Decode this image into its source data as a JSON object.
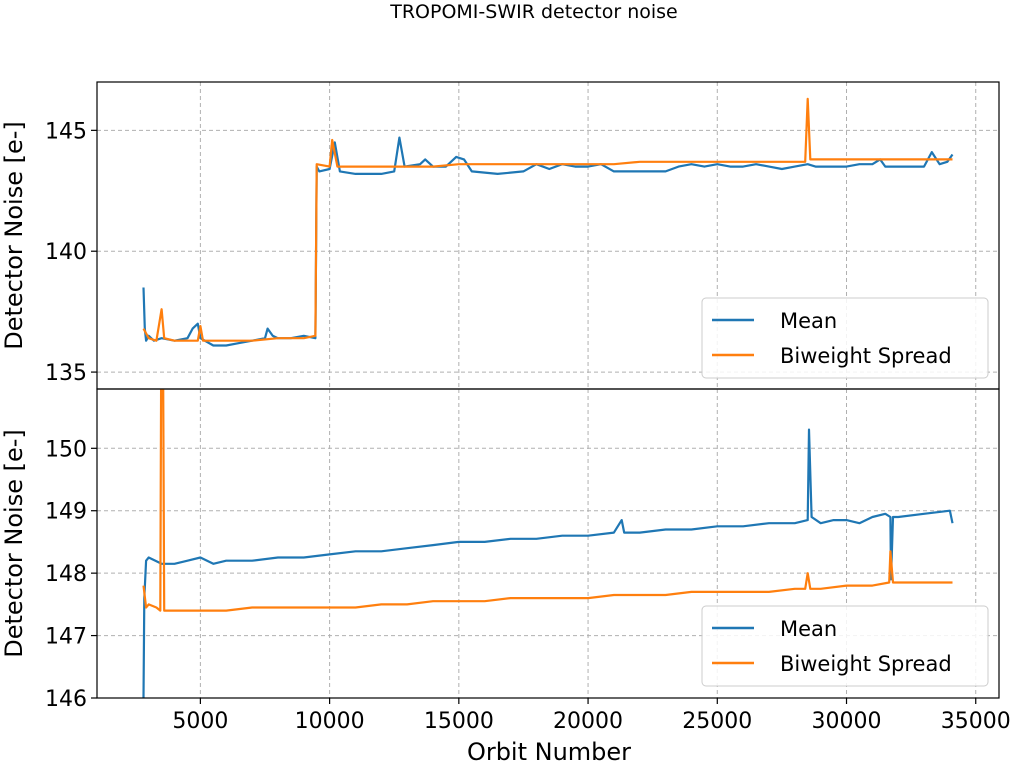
{
  "figure": {
    "title": "TROPOMI-SWIR detector noise",
    "xlabel": "Orbit Number",
    "x_ticks": [
      5000,
      10000,
      15000,
      20000,
      25000,
      30000,
      35000
    ]
  },
  "chart_data": [
    {
      "type": "line",
      "panel": "top",
      "title": "TROPOMI-SWIR detector noise",
      "xlabel": "",
      "ylabel": "Detector Noise [e-]",
      "xlim": [
        1000,
        35900
      ],
      "ylim": [
        134.3,
        147.0
      ],
      "x_ticks": [
        5000,
        10000,
        15000,
        20000,
        25000,
        30000,
        35000
      ],
      "y_ticks": [
        135,
        140,
        145
      ],
      "grid": true,
      "legend_position": "lower-right",
      "series": [
        {
          "name": "Mean",
          "color": "#1f77b4",
          "points": [
            [
              2800,
              138.5
            ],
            [
              2850,
              136.8
            ],
            [
              2900,
              136.3
            ],
            [
              3000,
              136.5
            ],
            [
              3200,
              136.3
            ],
            [
              3500,
              136.4
            ],
            [
              4000,
              136.3
            ],
            [
              4500,
              136.4
            ],
            [
              4700,
              136.8
            ],
            [
              4900,
              137.0
            ],
            [
              5000,
              136.4
            ],
            [
              5500,
              136.1
            ],
            [
              6000,
              136.1
            ],
            [
              6500,
              136.2
            ],
            [
              7000,
              136.3
            ],
            [
              7500,
              136.4
            ],
            [
              7600,
              136.8
            ],
            [
              7800,
              136.5
            ],
            [
              8000,
              136.4
            ],
            [
              8500,
              136.4
            ],
            [
              9000,
              136.5
            ],
            [
              9450,
              136.4
            ],
            [
              9500,
              143.5
            ],
            [
              9600,
              143.3
            ],
            [
              10000,
              143.4
            ],
            [
              10200,
              144.5
            ],
            [
              10400,
              143.3
            ],
            [
              11000,
              143.2
            ],
            [
              12000,
              143.2
            ],
            [
              12500,
              143.3
            ],
            [
              12700,
              144.7
            ],
            [
              12900,
              143.5
            ],
            [
              13500,
              143.6
            ],
            [
              13700,
              143.8
            ],
            [
              14000,
              143.5
            ],
            [
              14500,
              143.5
            ],
            [
              14900,
              143.9
            ],
            [
              15200,
              143.8
            ],
            [
              15500,
              143.3
            ],
            [
              16500,
              143.2
            ],
            [
              17500,
              143.3
            ],
            [
              18000,
              143.6
            ],
            [
              18500,
              143.4
            ],
            [
              19000,
              143.6
            ],
            [
              19500,
              143.5
            ],
            [
              20000,
              143.5
            ],
            [
              20500,
              143.6
            ],
            [
              21000,
              143.3
            ],
            [
              22000,
              143.3
            ],
            [
              23000,
              143.3
            ],
            [
              23500,
              143.5
            ],
            [
              24000,
              143.6
            ],
            [
              24500,
              143.5
            ],
            [
              25000,
              143.6
            ],
            [
              25500,
              143.5
            ],
            [
              26000,
              143.5
            ],
            [
              26500,
              143.6
            ],
            [
              27000,
              143.5
            ],
            [
              27500,
              143.4
            ],
            [
              28000,
              143.5
            ],
            [
              28500,
              143.6
            ],
            [
              28800,
              143.5
            ],
            [
              29500,
              143.5
            ],
            [
              30000,
              143.5
            ],
            [
              30500,
              143.6
            ],
            [
              31000,
              143.6
            ],
            [
              31300,
              143.8
            ],
            [
              31500,
              143.5
            ],
            [
              32000,
              143.5
            ],
            [
              32500,
              143.5
            ],
            [
              33000,
              143.5
            ],
            [
              33300,
              144.1
            ],
            [
              33600,
              143.6
            ],
            [
              33900,
              143.7
            ],
            [
              34100,
              144.0
            ]
          ]
        },
        {
          "name": "Biweight Spread",
          "color": "#ff7f0e",
          "points": [
            [
              2800,
              136.8
            ],
            [
              3000,
              136.4
            ],
            [
              3300,
              136.3
            ],
            [
              3500,
              137.6
            ],
            [
              3600,
              136.4
            ],
            [
              4000,
              136.3
            ],
            [
              4900,
              136.3
            ],
            [
              5000,
              136.9
            ],
            [
              5100,
              136.3
            ],
            [
              6000,
              136.3
            ],
            [
              7000,
              136.3
            ],
            [
              8000,
              136.4
            ],
            [
              9000,
              136.4
            ],
            [
              9450,
              136.5
            ],
            [
              9500,
              143.6
            ],
            [
              10000,
              143.5
            ],
            [
              10100,
              144.6
            ],
            [
              10300,
              143.5
            ],
            [
              11000,
              143.5
            ],
            [
              12000,
              143.5
            ],
            [
              13000,
              143.5
            ],
            [
              14000,
              143.5
            ],
            [
              15000,
              143.6
            ],
            [
              15500,
              143.6
            ],
            [
              16000,
              143.6
            ],
            [
              17000,
              143.6
            ],
            [
              18000,
              143.6
            ],
            [
              19000,
              143.6
            ],
            [
              20000,
              143.6
            ],
            [
              21000,
              143.6
            ],
            [
              22000,
              143.7
            ],
            [
              23000,
              143.7
            ],
            [
              24000,
              143.7
            ],
            [
              25000,
              143.7
            ],
            [
              26000,
              143.7
            ],
            [
              27000,
              143.7
            ],
            [
              28000,
              143.7
            ],
            [
              28400,
              143.7
            ],
            [
              28500,
              146.3
            ],
            [
              28600,
              143.8
            ],
            [
              29000,
              143.8
            ],
            [
              30000,
              143.8
            ],
            [
              31000,
              143.8
            ],
            [
              32000,
              143.8
            ],
            [
              33000,
              143.8
            ],
            [
              34000,
              143.8
            ],
            [
              34100,
              143.8
            ]
          ]
        }
      ]
    },
    {
      "type": "line",
      "panel": "bottom",
      "title": "",
      "xlabel": "Orbit Number",
      "ylabel": "Detector Noise [e-]",
      "xlim": [
        1000,
        35900
      ],
      "ylim": [
        146.0,
        150.95
      ],
      "x_ticks": [
        5000,
        10000,
        15000,
        20000,
        25000,
        30000,
        35000
      ],
      "y_ticks": [
        146,
        147,
        148,
        149,
        150
      ],
      "grid": true,
      "legend_position": "lower-right",
      "series": [
        {
          "name": "Mean",
          "color": "#1f77b4",
          "points": [
            [
              2800,
              146.0
            ],
            [
              2830,
              147.6
            ],
            [
              2900,
              148.2
            ],
            [
              3000,
              148.25
            ],
            [
              3500,
              148.15
            ],
            [
              4000,
              148.15
            ],
            [
              4500,
              148.2
            ],
            [
              5000,
              148.25
            ],
            [
              5500,
              148.15
            ],
            [
              6000,
              148.2
            ],
            [
              7000,
              148.2
            ],
            [
              8000,
              148.25
            ],
            [
              9000,
              148.25
            ],
            [
              10000,
              148.3
            ],
            [
              11000,
              148.35
            ],
            [
              12000,
              148.35
            ],
            [
              13000,
              148.4
            ],
            [
              14000,
              148.45
            ],
            [
              15000,
              148.5
            ],
            [
              16000,
              148.5
            ],
            [
              17000,
              148.55
            ],
            [
              18000,
              148.55
            ],
            [
              19000,
              148.6
            ],
            [
              20000,
              148.6
            ],
            [
              21000,
              148.65
            ],
            [
              21300,
              148.85
            ],
            [
              21400,
              148.65
            ],
            [
              22000,
              148.65
            ],
            [
              23000,
              148.7
            ],
            [
              24000,
              148.7
            ],
            [
              25000,
              148.75
            ],
            [
              26000,
              148.75
            ],
            [
              27000,
              148.8
            ],
            [
              28000,
              148.8
            ],
            [
              28500,
              148.85
            ],
            [
              28550,
              150.3
            ],
            [
              28650,
              148.9
            ],
            [
              29000,
              148.8
            ],
            [
              29500,
              148.85
            ],
            [
              30000,
              148.85
            ],
            [
              30500,
              148.8
            ],
            [
              31000,
              148.9
            ],
            [
              31500,
              148.95
            ],
            [
              31700,
              148.9
            ],
            [
              31720,
              147.9
            ],
            [
              31800,
              148.9
            ],
            [
              32000,
              148.9
            ],
            [
              33000,
              148.95
            ],
            [
              34000,
              149.0
            ],
            [
              34100,
              148.8
            ]
          ]
        },
        {
          "name": "Biweight Spread",
          "color": "#ff7f0e",
          "points": [
            [
              2800,
              147.8
            ],
            [
              2900,
              147.45
            ],
            [
              3000,
              147.5
            ],
            [
              3300,
              147.45
            ],
            [
              3450,
              147.4
            ],
            [
              3480,
              151.0
            ],
            [
              3560,
              151.0
            ],
            [
              3600,
              147.4
            ],
            [
              4000,
              147.4
            ],
            [
              5000,
              147.4
            ],
            [
              6000,
              147.4
            ],
            [
              7000,
              147.45
            ],
            [
              8000,
              147.45
            ],
            [
              9000,
              147.45
            ],
            [
              10000,
              147.45
            ],
            [
              11000,
              147.45
            ],
            [
              12000,
              147.5
            ],
            [
              13000,
              147.5
            ],
            [
              14000,
              147.55
            ],
            [
              15000,
              147.55
            ],
            [
              16000,
              147.55
            ],
            [
              17000,
              147.6
            ],
            [
              18000,
              147.6
            ],
            [
              19000,
              147.6
            ],
            [
              20000,
              147.6
            ],
            [
              21000,
              147.65
            ],
            [
              22000,
              147.65
            ],
            [
              23000,
              147.65
            ],
            [
              24000,
              147.7
            ],
            [
              25000,
              147.7
            ],
            [
              26000,
              147.7
            ],
            [
              27000,
              147.7
            ],
            [
              28000,
              147.75
            ],
            [
              28400,
              147.75
            ],
            [
              28500,
              148.0
            ],
            [
              28600,
              147.75
            ],
            [
              29000,
              147.75
            ],
            [
              30000,
              147.8
            ],
            [
              31000,
              147.8
            ],
            [
              31650,
              147.85
            ],
            [
              31700,
              148.35
            ],
            [
              31800,
              147.85
            ],
            [
              32000,
              147.85
            ],
            [
              33000,
              147.85
            ],
            [
              34000,
              147.85
            ],
            [
              34100,
              147.85
            ]
          ]
        }
      ]
    }
  ]
}
